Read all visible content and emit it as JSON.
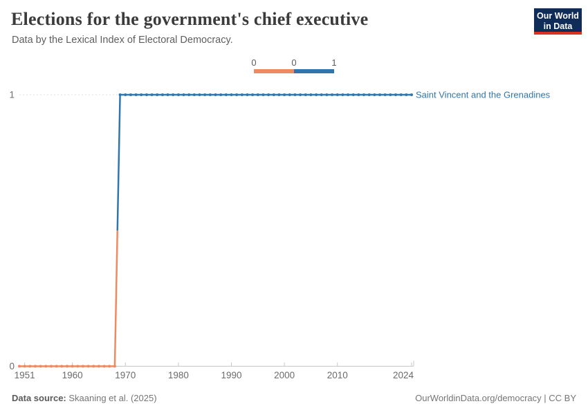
{
  "header": {
    "title": "Elections for the government's chief executive",
    "subtitle": "Data by the Lexical Index of Electoral Democracy.",
    "logo": {
      "line1": "Our World",
      "line2": "in Data",
      "bg_color": "#102d59",
      "accent_color": "#dc3022"
    }
  },
  "legend": {
    "labels": [
      "0",
      "0",
      "1"
    ],
    "bins": [
      {
        "value": 0,
        "color": "#ee8a62"
      },
      {
        "value": 1,
        "color": "#3076ad"
      }
    ]
  },
  "chart_data": {
    "type": "line",
    "step": true,
    "title": "Elections for the government's chief executive",
    "xlabel": "",
    "ylabel": "",
    "x_range": [
      1950,
      2024
    ],
    "ylim": [
      0,
      1
    ],
    "x_ticks": [
      1951,
      1960,
      1970,
      1980,
      1990,
      2000,
      2010,
      2024
    ],
    "y_ticks": [
      0,
      1
    ],
    "grid": "dashed-line-at-1",
    "legend_position": "top-center",
    "series": [
      {
        "name": "Saint Vincent and the Grenadines",
        "label_color": "#3076ad",
        "segments": [
          {
            "value": 0,
            "start_year": 1950,
            "end_year": 1968,
            "color": "#ee8a62"
          },
          {
            "value": 1,
            "start_year": 1969,
            "end_year": 2024,
            "color": "#3076ad"
          }
        ]
      }
    ],
    "colors": {
      "grid": "#dcdcdc",
      "axis": "#c7c7c7",
      "tick_text": "#6b6b6b"
    }
  },
  "footer": {
    "source_label": "Data source:",
    "source_value": " Skaaning et al. (2025)",
    "right_text": "OurWorldinData.org/democracy | CC BY"
  }
}
